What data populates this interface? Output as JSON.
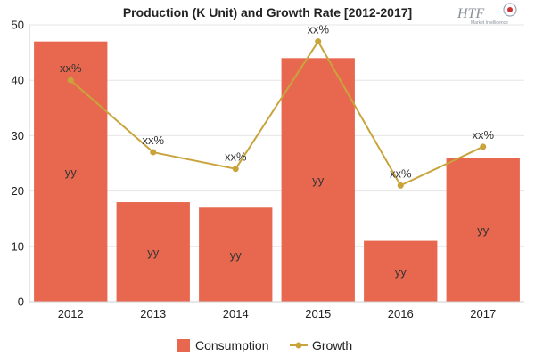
{
  "chart_data": {
    "type": "bar",
    "title": "Production (K Unit) and Growth Rate [2012-2017]",
    "categories": [
      "2012",
      "2013",
      "2014",
      "2015",
      "2016",
      "2017"
    ],
    "series": [
      {
        "name": "Consumption",
        "type": "bar",
        "values": [
          47,
          18,
          17,
          44,
          11,
          26
        ],
        "labels": [
          "yy",
          "yy",
          "yy",
          "yy",
          "yy",
          "yy"
        ]
      },
      {
        "name": "Growth",
        "type": "line",
        "values": [
          40,
          27,
          24,
          47,
          21,
          28
        ],
        "labels": [
          "xx%",
          "xx%",
          "xx%",
          "xx%",
          "xx%",
          "xx%"
        ]
      }
    ],
    "ylim": [
      0,
      50
    ],
    "yticks": [
      "0",
      "10",
      "20",
      "30",
      "40",
      "50"
    ],
    "grid": true,
    "legend_position": "bottom",
    "colors": {
      "bar": "#E8684F",
      "line": "#C9A43C",
      "grid": "#E6E6E6"
    }
  },
  "logo": {
    "text": "HTF",
    "subtitle": "Market Intelligence"
  }
}
